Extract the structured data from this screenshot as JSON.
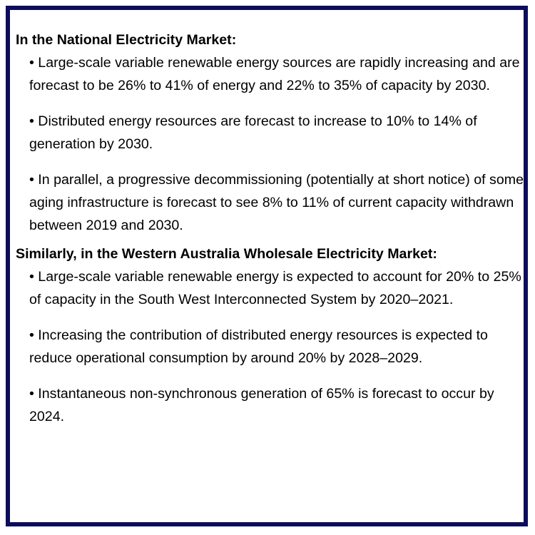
{
  "sections": [
    {
      "heading": "In the National Electricity Market:",
      "bullets": [
        "• Large-scale variable renewable energy sources are rapidly increasing and are forecast to be 26% to 41% of energy and 22% to 35% of capacity by 2030.",
        "• Distributed energy resources are forecast to increase to 10% to 14% of generation by 2030.",
        "• In parallel, a progressive decommissioning (potentially at short notice) of some aging infrastructure is forecast to see 8% to 11% of current capacity withdrawn between 2019 and 2030."
      ]
    },
    {
      "heading": "Similarly, in the Western Australia Wholesale Electricity Market:",
      "bullets": [
        "• Large-scale variable renewable energy is expected to account for 20% to 25% of capacity in the South West Interconnected System by 2020–2021.",
        "• Increasing the contribution of distributed energy resources is expected to reduce operational consumption by around 20% by 2028–2029.",
        "• Instantaneous non-synchronous generation of 65% is forecast to occur by 2024."
      ]
    }
  ],
  "colors": {
    "border": "#0d0d5c",
    "text": "#000000",
    "background": "#ffffff"
  }
}
